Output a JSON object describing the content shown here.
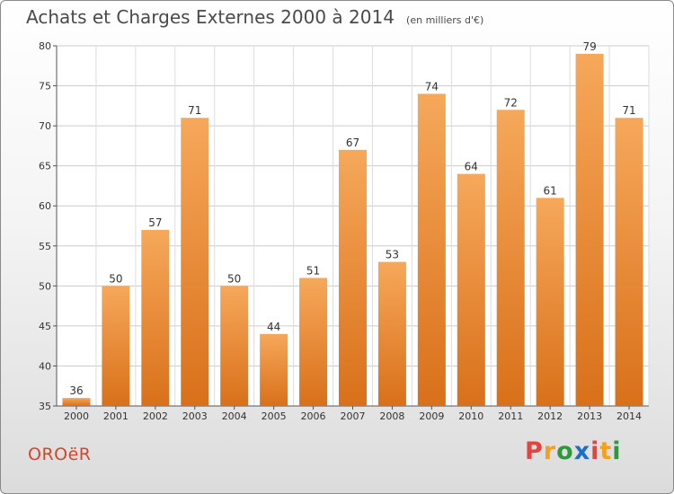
{
  "header": {
    "title": "Achats et Charges Externes 2000 à 2014",
    "subtitle": "(en milliers d'€)"
  },
  "footer": {
    "commune": "OROëR",
    "brand": "Proxiti",
    "brand_colors": [
      "#e8423a",
      "#f6a01a",
      "#2a9a3b",
      "#1e6fc7",
      "#e8423a",
      "#f6a01a",
      "#2a9a3b"
    ]
  },
  "chart_data": {
    "type": "bar",
    "title": "Achats et Charges Externes 2000 à 2014",
    "subtitle": "(en milliers d'€)",
    "xlabel": "",
    "ylabel": "",
    "categories": [
      "2000",
      "2001",
      "2002",
      "2003",
      "2004",
      "2005",
      "2006",
      "2007",
      "2008",
      "2009",
      "2010",
      "2011",
      "2012",
      "2013",
      "2014"
    ],
    "values": [
      36,
      50,
      57,
      71,
      50,
      44,
      51,
      67,
      53,
      74,
      64,
      72,
      61,
      79,
      71
    ],
    "ylim": [
      35,
      80
    ],
    "yticks": [
      35,
      40,
      45,
      50,
      55,
      60,
      65,
      70,
      75,
      80
    ],
    "grid": true,
    "bar_color": "#ef8a2c",
    "bar_color_light": "#f6a85a",
    "bar_color_dark": "#d9701a"
  }
}
